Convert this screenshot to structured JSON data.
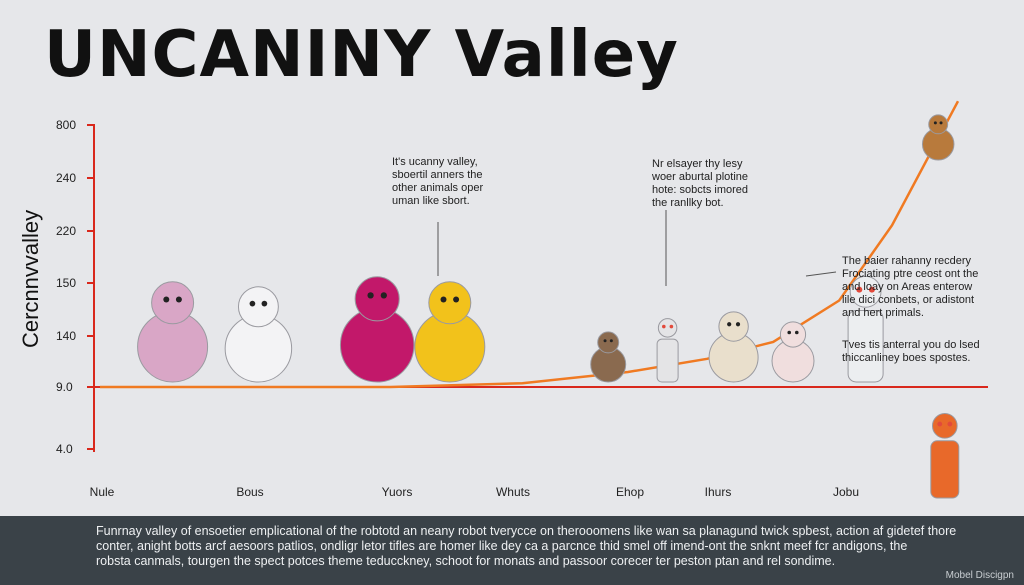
{
  "title": "UNCANINY Valley",
  "chart_data": {
    "type": "line",
    "ylabel": "Cercnnvvalley",
    "y_ticks": [
      "800",
      "240",
      "220",
      "150",
      "140",
      "9.0",
      "4.0"
    ],
    "categories": [
      "Nule",
      "Bous",
      "Yuors",
      "Whuts",
      "Ehop",
      "Ihurs",
      "Jobu"
    ],
    "baseline": "9.0",
    "grid": false,
    "legend": "none",
    "curve": [
      {
        "x": 0.0,
        "y": 9.0
      },
      {
        "x": 2.2,
        "y": 9.0
      },
      {
        "x": 3.2,
        "y": 10.0
      },
      {
        "x": 4.0,
        "y": 13.0
      },
      {
        "x": 4.6,
        "y": 16.5
      },
      {
        "x": 5.1,
        "y": 21.0
      },
      {
        "x": 5.6,
        "y": 32.0
      },
      {
        "x": 6.0,
        "y": 52.0
      },
      {
        "x": 6.5,
        "y": 85.0
      }
    ],
    "figures": [
      {
        "name": "pink-teddy-bear",
        "x": 0.55,
        "icon": "teddy-bear-icon",
        "color": "#d9a6c6"
      },
      {
        "name": "white-owl-plush",
        "x": 1.2,
        "icon": "owl-plush-icon",
        "color": "#f3f3f5"
      },
      {
        "name": "magenta-furry-monster",
        "x": 2.1,
        "icon": "furry-monster-icon",
        "color": "#c2186a"
      },
      {
        "name": "yellow-furry-creature",
        "x": 2.65,
        "icon": "yellow-creature-icon",
        "color": "#f2c21b"
      },
      {
        "name": "small-brown-bear",
        "x": 3.85,
        "icon": "small-bear-icon",
        "color": "#8a6a4f"
      },
      {
        "name": "robot-dog",
        "x": 4.3,
        "icon": "robot-dog-icon",
        "color": "#e4e4e6"
      },
      {
        "name": "beige-creature",
        "x": 4.8,
        "icon": "beige-creature-icon",
        "color": "#e9dfcc"
      },
      {
        "name": "pink-pig-plush",
        "x": 5.25,
        "icon": "pig-plush-icon",
        "color": "#f0dede"
      },
      {
        "name": "white-humanoid-robot",
        "x": 5.8,
        "icon": "humanoid-robot-icon",
        "color": "#eceef0"
      },
      {
        "name": "brown-monkey",
        "x": 6.35,
        "icon": "monkey-icon",
        "color": "#b87a3c"
      },
      {
        "name": "orange-white-robot",
        "x": 6.4,
        "icon": "orange-robot-icon",
        "color": "#e8692a"
      }
    ],
    "annotations": [
      {
        "id": "ann1",
        "lines": [
          "It's ucanny valley,",
          "sboertil anners the",
          "other animals oper",
          "uman like sbort."
        ]
      },
      {
        "id": "ann2",
        "lines": [
          "Nr elsayer thy lesy",
          "woer aburtal plotine",
          "hote: sobcts imored",
          "the ranllky bot."
        ]
      },
      {
        "id": "ann3",
        "lines": [
          "The baier rahanny recdery",
          "Frociating ptre ceost ont the",
          "and loay on Areas enterow",
          "lile dici conbets, or adistont",
          "and hert primals."
        ]
      },
      {
        "id": "ann4",
        "lines": [
          "Tves tis anterral you do lsed",
          "thiccanliney boes spostes."
        ]
      }
    ],
    "colors": {
      "axis": "#d9281c",
      "curve": "#f07a22",
      "text": "#222222"
    }
  },
  "footer": {
    "lines": [
      "Funrnay valley of ensoetier emplicational of the robtotd an neany robot tverycce on therooomens like wan sa planagund twick spbest, action af gidetef thore",
      "conter, anight botts arcf aesoors patlios, ondligr letor tifles are homer like dey ca a parcnce thid smel off imend-ont the snknt meef fcr andigons, the",
      "robsta canmals, tourgen the spect potces theme teducckney, schoot for monats and passoor corecer ter peston ptan and rel sondime."
    ],
    "credit": "Mobel Discigpn"
  }
}
